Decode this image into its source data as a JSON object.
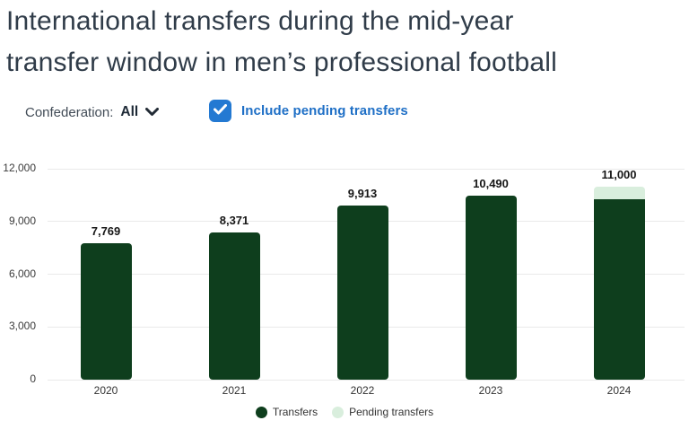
{
  "title": {
    "line1": "International transfers during the mid-year",
    "line2": "transfer window in men’s professional football",
    "full": "International transfers during the mid-year transfer window in men’s professional football"
  },
  "controls": {
    "confederation_label": "Confederation:",
    "confederation_value": "All",
    "chevron_icon": "chevron-down",
    "checkbox_checked": true,
    "checkbox_label": "Include pending transfers"
  },
  "colors": {
    "transfers_green": "#0e3e1d",
    "pending_green": "#d9eedd",
    "checkbox_blue": "#2379d2",
    "checkbox_label_blue": "#1e6fc6",
    "title_text": "#303c49",
    "gridline": "#eaeaea",
    "axis_text": "#3b3b3b",
    "value_label_text": "#161616"
  },
  "chart_data": {
    "type": "bar",
    "stacked": true,
    "title": "International transfers during the mid-year transfer window in men’s professional football",
    "categories": [
      "2020",
      "2021",
      "2022",
      "2023",
      "2024"
    ],
    "series": [
      {
        "name": "Transfers",
        "color": "#0e3e1d",
        "values": [
          7769,
          8371,
          9913,
          10490,
          10250
        ]
      },
      {
        "name": "Pending transfers",
        "color": "#d9eedd",
        "values": [
          0,
          0,
          0,
          0,
          750
        ]
      }
    ],
    "bar_total_labels": [
      "7,769",
      "8,371",
      "9,913",
      "10,490",
      "11,000"
    ],
    "bar_totals": [
      7769,
      8371,
      9913,
      10490,
      11000
    ],
    "xlabel": "",
    "ylabel": "",
    "ylim": [
      0,
      12000
    ],
    "yticks": [
      0,
      3000,
      6000,
      9000,
      12000
    ],
    "ytick_labels": [
      "0",
      "3,000",
      "6,000",
      "9,000",
      "12,000"
    ],
    "grid": true,
    "legend_position": "bottom",
    "legend": [
      {
        "label": "Transfers",
        "color": "#0e3e1d"
      },
      {
        "label": "Pending transfers",
        "color": "#d9eedd"
      }
    ]
  }
}
